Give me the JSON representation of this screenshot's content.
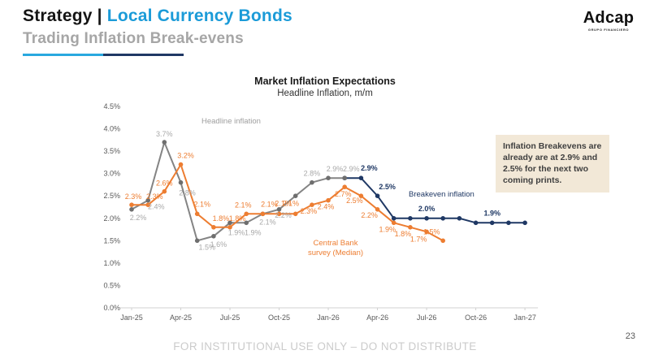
{
  "header": {
    "title_black": "Strategy",
    "separator": " | ",
    "title_blue": "Local Currency Bonds",
    "subtitle": "Trading Inflation Break-evens"
  },
  "logo": {
    "name": "Adcap",
    "tagline": "GRUPO FINANCIERO"
  },
  "annotation_box": {
    "text": "Inflation Breakevens are already are at 2.9% and 2.5% for the next two coming prints."
  },
  "footer": {
    "disclaimer": "FOR INSTITUTIONAL USE ONLY – DO NOT DISTRIBUTE",
    "page_number": "23"
  },
  "colors": {
    "accent_blue": "#1B9BD8",
    "underline_cyan": "#29A8DF",
    "navy": "#1F3864",
    "orange": "#ED7D31",
    "gray_line": "#848484"
  },
  "chart_data": {
    "type": "line",
    "title": "Market Inflation Expectations",
    "subtitle": "Headline Inflation, m/m",
    "ylim": [
      0,
      4.5
    ],
    "grid": false,
    "x_months_total": 25,
    "x_tick_labels": [
      "Jan-25",
      "Apr-25",
      "Jul-25",
      "Oct-25",
      "Jan-26",
      "Apr-26",
      "Jul-26",
      "Oct-26",
      "Jan-27"
    ],
    "y_ticks": [
      {
        "value": 0.0,
        "label": "0.0%"
      },
      {
        "value": 0.5,
        "label": "0.5%"
      },
      {
        "value": 1.0,
        "label": "1.0%"
      },
      {
        "value": 1.5,
        "label": "1.5%"
      },
      {
        "value": 2.0,
        "label": "2.0%"
      },
      {
        "value": 2.5,
        "label": "2.5%"
      },
      {
        "value": 3.0,
        "label": "3.0%"
      },
      {
        "value": 3.5,
        "label": "3.5%"
      },
      {
        "value": 4.0,
        "label": "4.0%"
      },
      {
        "value": 4.5,
        "label": "4.5%"
      }
    ],
    "series": [
      {
        "name": "Headline inflation",
        "color": "#848484",
        "marker_color": "#6e6e6e",
        "label_color": "#a8a8a8",
        "bold_labels": false,
        "start_index": 0,
        "values": [
          2.2,
          2.4,
          3.7,
          2.8,
          1.5,
          1.6,
          1.9,
          1.9,
          2.1,
          2.2,
          2.5,
          2.8,
          2.9,
          2.9
        ],
        "labels": [
          "2.2%",
          "2.4%",
          "3.7%",
          "2.8%",
          "1.5%",
          "1.6%",
          "1.9%",
          "1.9%",
          "2.1%",
          "2.2%",
          "",
          "2.8%",
          "2.9%",
          "2.9%"
        ],
        "label_offsets": [
          [
            8,
            13
          ],
          [
            10,
            11
          ],
          [
            0,
            -7
          ],
          [
            8,
            16
          ],
          [
            12,
            11
          ],
          [
            6,
            13
          ],
          [
            8,
            15
          ],
          [
            8,
            15
          ],
          [
            6,
            13
          ],
          [
            5,
            10
          ],
          [
            0,
            0
          ],
          [
            0,
            -8
          ],
          [
            8,
            -8
          ],
          [
            8,
            -8
          ]
        ]
      },
      {
        "name": "Central Bank survey (Median)",
        "color": "#ED7D31",
        "marker_color": "#ED7D31",
        "label_color": "#ED7D31",
        "bold_labels": false,
        "start_index": 0,
        "values": [
          2.3,
          2.3,
          2.6,
          3.2,
          2.1,
          1.8,
          1.8,
          2.1,
          2.1,
          2.1,
          2.1,
          2.3,
          2.4,
          2.7,
          2.5,
          2.2,
          1.9,
          1.8,
          1.7,
          1.5
        ],
        "labels": [
          "2.3%",
          "2.3%",
          "2.6%",
          "3.2%",
          "2.1%",
          "1.8%",
          "1.8%",
          "2.1%",
          "2.1%",
          "2.1%",
          "2.1%",
          "2.3%",
          "2.4%",
          "2.7%",
          "2.5%",
          "2.2%",
          "1.9%",
          "1.8%",
          "1.7%",
          "1.5%"
        ],
        "label_offsets": [
          [
            2,
            -7
          ],
          [
            8,
            -7
          ],
          [
            0,
            -7
          ],
          [
            6,
            -8
          ],
          [
            6,
            -9
          ],
          [
            9,
            -8
          ],
          [
            9,
            -8
          ],
          [
            -4,
            -8
          ],
          [
            8,
            -9
          ],
          [
            5,
            -10
          ],
          [
            -6,
            -10
          ],
          [
            -4,
            11
          ],
          [
            -3,
            11
          ],
          [
            -2,
            12
          ],
          [
            -8,
            9
          ],
          [
            -10,
            10
          ],
          [
            -8,
            11
          ],
          [
            -9,
            11
          ],
          [
            -10,
            12
          ],
          [
            -14,
            -8
          ]
        ]
      },
      {
        "name": "Breakeven inflation",
        "color": "#1F3864",
        "marker_color": "#1F3864",
        "label_color": "#1F3864",
        "bold_labels": true,
        "start_index": 13,
        "values": [
          2.9,
          2.9,
          2.5,
          2.0,
          2.0,
          2.0,
          2.0,
          2.0,
          1.9,
          1.9,
          1.9,
          1.9
        ],
        "labels": [
          "",
          "2.9%",
          "2.5%",
          "",
          "",
          "2.0%",
          "",
          "",
          "",
          "1.9%",
          "",
          ""
        ],
        "label_offsets": [
          [
            0,
            0
          ],
          [
            10,
            -9
          ],
          [
            12,
            -8
          ],
          [
            0,
            0
          ],
          [
            0,
            0
          ],
          [
            0,
            -9
          ],
          [
            0,
            0
          ],
          [
            0,
            0
          ],
          [
            0,
            0
          ],
          [
            0,
            -9
          ],
          [
            0,
            0
          ],
          [
            0,
            0
          ]
        ]
      }
    ],
    "series_annotations": [
      {
        "lines": [
          "Headline inflation"
        ],
        "x": 128,
        "y": 32,
        "color": "#9e9e9e",
        "anchor": "start",
        "bold": false
      },
      {
        "lines": [
          "Central Bank",
          "survey (Median)"
        ],
        "x": 293,
        "y": 182,
        "color": "#ED7D31",
        "anchor": "middle",
        "bold": false
      },
      {
        "lines": [
          "Breakeven inflation"
        ],
        "x": 383,
        "y": 122,
        "color": "#1F3864",
        "anchor": "start",
        "bold": false
      }
    ]
  }
}
